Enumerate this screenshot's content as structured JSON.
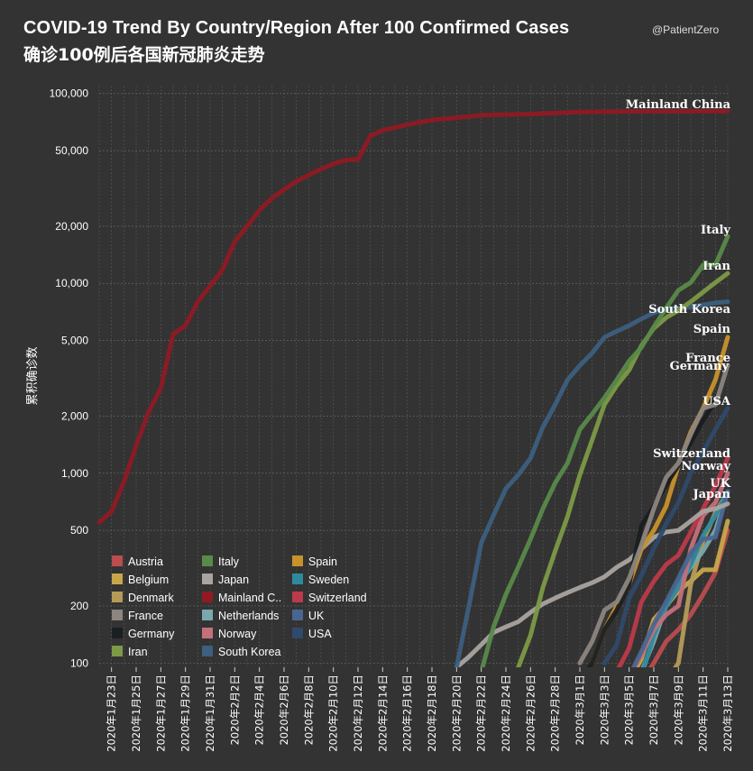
{
  "title": "COVID-19 Trend By Country/Region After 100 Confirmed Cases",
  "subtitle": "确诊100例后各国新冠肺炎走势",
  "credit": "@PatientZero",
  "chart_data": {
    "type": "line",
    "y_scale": "log",
    "ylabel": "累积确诊数",
    "ylim": [
      95,
      110000
    ],
    "y_ticks": [
      100,
      200,
      500,
      1000,
      2000,
      5000,
      10000,
      20000,
      50000,
      100000
    ],
    "y_tick_labels": [
      "100",
      "200",
      "500",
      "1,000",
      "2,000",
      "5,000",
      "10,000",
      "20,000",
      "50,000",
      "100,000"
    ],
    "x_start": "2020-01-22",
    "x_end": "2020-03-13",
    "x_tick_labels": [
      "2020年1月23日",
      "2020年1月25日",
      "2020年1月27日",
      "2020年1月29日",
      "2020年1月31日",
      "2020年2月2日",
      "2020年2月4日",
      "2020年2月6日",
      "2020年2月8日",
      "2020年2月10日",
      "2020年2月12日",
      "2020年2月14日",
      "2020年2月16日",
      "2020年2月18日",
      "2020年2月20日",
      "2020年2月22日",
      "2020年2月24日",
      "2020年2月26日",
      "2020年2月28日",
      "2020年3月1日",
      "2020年3月3日",
      "2020年3月5日",
      "2020年3月7日",
      "2020年3月9日",
      "2020年3月11日",
      "2020年3月13日"
    ],
    "x_tick_dates": [
      "2020-01-23",
      "2020-01-25",
      "2020-01-27",
      "2020-01-29",
      "2020-01-31",
      "2020-02-02",
      "2020-02-04",
      "2020-02-06",
      "2020-02-08",
      "2020-02-10",
      "2020-02-12",
      "2020-02-14",
      "2020-02-16",
      "2020-02-18",
      "2020-02-20",
      "2020-02-22",
      "2020-02-24",
      "2020-02-26",
      "2020-02-28",
      "2020-03-01",
      "2020-03-03",
      "2020-03-05",
      "2020-03-07",
      "2020-03-09",
      "2020-03-11",
      "2020-03-13"
    ],
    "grid": true,
    "legend_position": "bottom-left",
    "series": [
      {
        "name": "Austria",
        "color": "#b94d4f",
        "dates": [
          "2020-03-06",
          "2020-03-07",
          "2020-03-08",
          "2020-03-09",
          "2020-03-10",
          "2020-03-11",
          "2020-03-12",
          "2020-03-13"
        ],
        "values": [
          80,
          100,
          130,
          150,
          180,
          230,
          300,
          500
        ]
      },
      {
        "name": "Belgium",
        "color": "#c9a64a",
        "dates": [
          "2020-03-05",
          "2020-03-06",
          "2020-03-07",
          "2020-03-08",
          "2020-03-09",
          "2020-03-10",
          "2020-03-11",
          "2020-03-12",
          "2020-03-13"
        ],
        "values": [
          80,
          105,
          170,
          200,
          240,
          270,
          310,
          310,
          560
        ]
      },
      {
        "name": "Denmark",
        "color": "#b49c58",
        "dates": [
          "2020-03-08",
          "2020-03-09",
          "2020-03-10",
          "2020-03-11",
          "2020-03-12",
          "2020-03-13"
        ],
        "values": [
          80,
          100,
          260,
          440,
          620,
          800
        ]
      },
      {
        "name": "France",
        "color": "#8c8580",
        "dates": [
          "2020-03-01",
          "2020-03-02",
          "2020-03-03",
          "2020-03-04",
          "2020-03-05",
          "2020-03-06",
          "2020-03-07",
          "2020-03-08",
          "2020-03-09",
          "2020-03-10",
          "2020-03-11",
          "2020-03-12",
          "2020-03-13"
        ],
        "values": [
          100,
          130,
          190,
          210,
          280,
          420,
          650,
          950,
          1130,
          1600,
          2200,
          2300,
          3700
        ]
      },
      {
        "name": "Germany",
        "color": "#1a1f22",
        "dates": [
          "2020-03-01",
          "2020-03-02",
          "2020-03-03",
          "2020-03-04",
          "2020-03-05",
          "2020-03-06",
          "2020-03-07",
          "2020-03-08",
          "2020-03-09",
          "2020-03-10",
          "2020-03-11",
          "2020-03-12",
          "2020-03-13"
        ],
        "values": [
          80,
          100,
          150,
          190,
          260,
          530,
          670,
          870,
          1100,
          1450,
          1900,
          2400,
          3600
        ]
      },
      {
        "name": "Iran",
        "color": "#7d9a46",
        "dates": [
          "2020-02-25",
          "2020-02-26",
          "2020-02-27",
          "2020-02-28",
          "2020-02-29",
          "2020-03-01",
          "2020-03-02",
          "2020-03-03",
          "2020-03-04",
          "2020-03-05",
          "2020-03-06",
          "2020-03-07",
          "2020-03-08",
          "2020-03-09",
          "2020-03-10",
          "2020-03-11",
          "2020-03-12",
          "2020-03-13"
        ],
        "values": [
          95,
          140,
          250,
          390,
          590,
          980,
          1500,
          2300,
          2900,
          3500,
          4700,
          5800,
          6600,
          7200,
          8000,
          9000,
          10100,
          11300
        ]
      },
      {
        "name": "Italy",
        "color": "#5a8a4a",
        "dates": [
          "2020-02-22",
          "2020-02-23",
          "2020-02-24",
          "2020-02-25",
          "2020-02-26",
          "2020-02-27",
          "2020-02-28",
          "2020-02-29",
          "2020-03-01",
          "2020-03-02",
          "2020-03-03",
          "2020-03-04",
          "2020-03-05",
          "2020-03-06",
          "2020-03-07",
          "2020-03-08",
          "2020-03-09",
          "2020-03-10",
          "2020-03-11",
          "2020-03-12",
          "2020-03-13"
        ],
        "values": [
          90,
          155,
          230,
          320,
          450,
          650,
          890,
          1130,
          1700,
          2050,
          2500,
          3100,
          3900,
          4600,
          5900,
          7400,
          9200,
          10100,
          12500,
          12500,
          17700
        ]
      },
      {
        "name": "Japan",
        "color": "#aaa4a0",
        "dates": [
          "2020-02-20",
          "2020-02-21",
          "2020-02-22",
          "2020-02-23",
          "2020-02-24",
          "2020-02-25",
          "2020-02-26",
          "2020-02-27",
          "2020-02-28",
          "2020-02-29",
          "2020-03-01",
          "2020-03-02",
          "2020-03-03",
          "2020-03-04",
          "2020-03-05",
          "2020-03-06",
          "2020-03-07",
          "2020-03-08",
          "2020-03-09",
          "2020-03-10",
          "2020-03-11",
          "2020-03-12",
          "2020-03-13"
        ],
        "values": [
          95,
          108,
          125,
          145,
          155,
          165,
          185,
          205,
          220,
          235,
          250,
          265,
          285,
          320,
          350,
          400,
          460,
          490,
          500,
          560,
          630,
          650,
          690
        ]
      },
      {
        "name": "Mainland China",
        "color": "#8f1a24",
        "dates": [
          "2020-01-22",
          "2020-01-23",
          "2020-01-24",
          "2020-01-25",
          "2020-01-26",
          "2020-01-27",
          "2020-01-28",
          "2020-01-29",
          "2020-01-30",
          "2020-01-31",
          "2020-02-01",
          "2020-02-02",
          "2020-02-03",
          "2020-02-04",
          "2020-02-05",
          "2020-02-06",
          "2020-02-07",
          "2020-02-08",
          "2020-02-09",
          "2020-02-10",
          "2020-02-11",
          "2020-02-12",
          "2020-02-13",
          "2020-02-14",
          "2020-02-16",
          "2020-02-18",
          "2020-02-20",
          "2020-02-22",
          "2020-02-26",
          "2020-03-01",
          "2020-03-05",
          "2020-03-13"
        ],
        "values": [
          550,
          630,
          900,
          1400,
          2100,
          2800,
          5400,
          6000,
          8000,
          9700,
          11800,
          16600,
          20000,
          24300,
          28000,
          31200,
          34500,
          37200,
          40000,
          42600,
          44600,
          45000,
          59900,
          64000,
          68500,
          72500,
          74500,
          76800,
          77900,
          79900,
          80500,
          80800
        ]
      },
      {
        "name": "Netherlands",
        "color": "#7aa8ac",
        "dates": [
          "2020-03-06",
          "2020-03-07",
          "2020-03-08",
          "2020-03-09",
          "2020-03-10",
          "2020-03-11",
          "2020-03-12",
          "2020-03-13"
        ],
        "values": [
          90,
          130,
          200,
          260,
          320,
          390,
          500,
          800
        ]
      },
      {
        "name": "Norway",
        "color": "#c4707a",
        "dates": [
          "2020-03-05",
          "2020-03-06",
          "2020-03-07",
          "2020-03-08",
          "2020-03-09",
          "2020-03-10",
          "2020-03-11",
          "2020-03-12",
          "2020-03-13"
        ],
        "values": [
          85,
          110,
          150,
          180,
          200,
          400,
          600,
          700,
          1000
        ]
      },
      {
        "name": "South Korea",
        "color": "#3d5f80",
        "dates": [
          "2020-02-20",
          "2020-02-21",
          "2020-02-22",
          "2020-02-23",
          "2020-02-24",
          "2020-02-25",
          "2020-02-26",
          "2020-02-27",
          "2020-02-28",
          "2020-02-29",
          "2020-03-01",
          "2020-03-02",
          "2020-03-03",
          "2020-03-04",
          "2020-03-05",
          "2020-03-06",
          "2020-03-07",
          "2020-03-08",
          "2020-03-09",
          "2020-03-10",
          "2020-03-11",
          "2020-03-12",
          "2020-03-13"
        ],
        "values": [
          95,
          200,
          430,
          600,
          830,
          980,
          1200,
          1750,
          2300,
          3100,
          3700,
          4300,
          5200,
          5600,
          6000,
          6500,
          7000,
          7300,
          7400,
          7500,
          7700,
          7900,
          8000
        ]
      },
      {
        "name": "Spain",
        "color": "#c8922a",
        "dates": [
          "2020-03-02",
          "2020-03-03",
          "2020-03-04",
          "2020-03-05",
          "2020-03-06",
          "2020-03-07",
          "2020-03-08",
          "2020-03-09",
          "2020-03-10",
          "2020-03-11",
          "2020-03-12",
          "2020-03-13"
        ],
        "values": [
          100,
          150,
          200,
          260,
          400,
          500,
          670,
          1100,
          1650,
          2200,
          3100,
          5200
        ]
      },
      {
        "name": "Sweden",
        "color": "#2f8a9e",
        "dates": [
          "2020-03-06",
          "2020-03-07",
          "2020-03-08",
          "2020-03-09",
          "2020-03-10",
          "2020-03-11",
          "2020-03-12",
          "2020-03-13"
        ],
        "values": [
          85,
          140,
          200,
          250,
          330,
          470,
          600,
          800
        ]
      },
      {
        "name": "Switzerland",
        "color": "#bd3a4a",
        "dates": [
          "2020-03-04",
          "2020-03-05",
          "2020-03-06",
          "2020-03-07",
          "2020-03-08",
          "2020-03-09",
          "2020-03-10",
          "2020-03-11",
          "2020-03-12",
          "2020-03-13"
        ],
        "values": [
          90,
          120,
          210,
          270,
          330,
          370,
          490,
          650,
          860,
          1200
        ]
      },
      {
        "name": "UK",
        "color": "#4a6690",
        "dates": [
          "2020-03-05",
          "2020-03-06",
          "2020-03-07",
          "2020-03-08",
          "2020-03-09",
          "2020-03-10",
          "2020-03-11",
          "2020-03-12",
          "2020-03-13"
        ],
        "values": [
          85,
          115,
          160,
          210,
          280,
          380,
          450,
          460,
          800
        ]
      },
      {
        "name": "USA",
        "color": "#2f4a6a",
        "dates": [
          "2020-03-03",
          "2020-03-04",
          "2020-03-05",
          "2020-03-06",
          "2020-03-07",
          "2020-03-08",
          "2020-03-09",
          "2020-03-10",
          "2020-03-11",
          "2020-03-12",
          "2020-03-13"
        ],
        "values": [
          100,
          125,
          220,
          290,
          400,
          540,
          700,
          1000,
          1300,
          1700,
          2200
        ]
      }
    ],
    "end_labels": [
      {
        "text": "Mainland China",
        "series": "Mainland China"
      },
      {
        "text": "Italy",
        "series": "Italy"
      },
      {
        "text": "Iran",
        "series": "Iran"
      },
      {
        "text": "South Korea",
        "series": "South Korea"
      },
      {
        "text": "Spain",
        "series": "Spain"
      },
      {
        "text": "France",
        "series": "France"
      },
      {
        "text": "Germany",
        "series": "Germany"
      },
      {
        "text": "USA",
        "series": "USA"
      },
      {
        "text": "Switzerland",
        "series": "Switzerland"
      },
      {
        "text": "Norway",
        "series": "Norway"
      },
      {
        "text": "UK",
        "series": "UK"
      },
      {
        "text": "Japan",
        "series": "Japan"
      }
    ],
    "legend": [
      "Austria",
      "Belgium",
      "Denmark",
      "France",
      "Germany",
      "Iran",
      "Italy",
      "Japan",
      "Mainland C..",
      "Netherlands",
      "Norway",
      "South Korea",
      "Spain",
      "Sweden",
      "Switzerland",
      "UK",
      "USA"
    ]
  }
}
